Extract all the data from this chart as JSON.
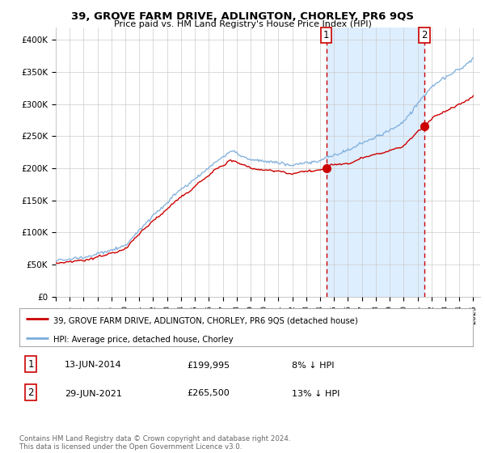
{
  "title": "39, GROVE FARM DRIVE, ADLINGTON, CHORLEY, PR6 9QS",
  "subtitle": "Price paid vs. HM Land Registry's House Price Index (HPI)",
  "address_label": "39, GROVE FARM DRIVE, ADLINGTON, CHORLEY, PR6 9QS (detached house)",
  "hpi_label": "HPI: Average price, detached house, Chorley",
  "sale1_date": "13-JUN-2014",
  "sale1_price": "£199,995",
  "sale1_hpi": "8% ↓ HPI",
  "sale2_date": "29-JUN-2021",
  "sale2_price": "£265,500",
  "sale2_hpi": "13% ↓ HPI",
  "footer": "Contains HM Land Registry data © Crown copyright and database right 2024.\nThis data is licensed under the Open Government Licence v3.0.",
  "ylim": [
    0,
    420000
  ],
  "yticks": [
    0,
    50000,
    100000,
    150000,
    200000,
    250000,
    300000,
    350000,
    400000
  ],
  "ytick_labels": [
    "£0",
    "£50K",
    "£100K",
    "£150K",
    "£200K",
    "£250K",
    "£300K",
    "£350K",
    "£400K"
  ],
  "sale1_x": 2014.44,
  "sale2_x": 2021.49,
  "red_color": "#cc0000",
  "blue_color": "#7aacda",
  "fill_color": "#ddeeff",
  "vline_color": "#cc0000",
  "grid_color": "#cccccc",
  "bg_color": "#ffffff",
  "start_year": 1995,
  "end_year": 2025
}
